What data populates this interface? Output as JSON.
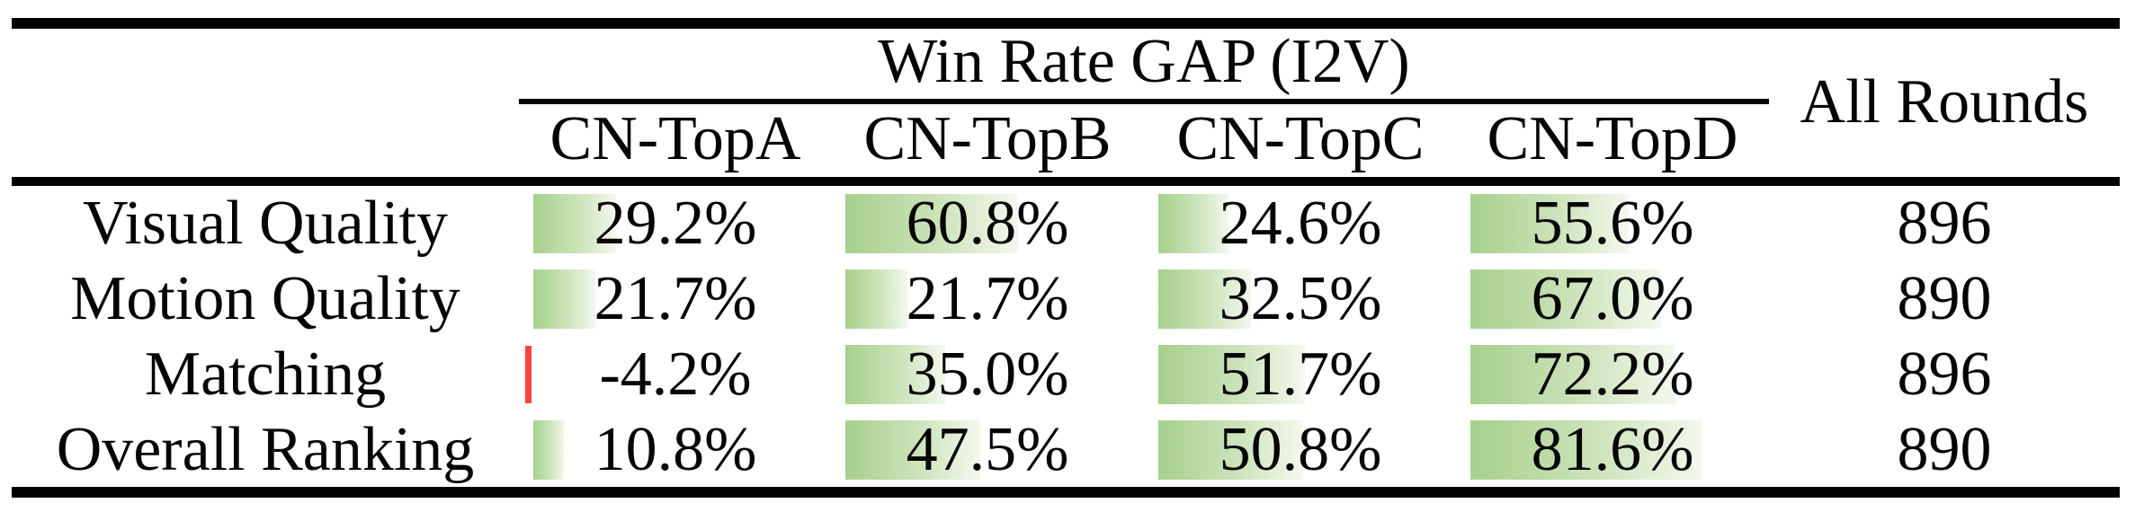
{
  "table": {
    "group_header": "Win Rate GAP (I2V)",
    "all_rounds_header": "All Rounds",
    "columns": [
      "CN-TopA",
      "CN-TopB",
      "CN-TopC",
      "CN-TopD"
    ],
    "rows": [
      {
        "label": "Visual Quality",
        "pcts": [
          29.2,
          60.8,
          24.6,
          55.6
        ],
        "pct_labels": [
          "29.2%",
          "60.8%",
          "24.6%",
          "55.6%"
        ],
        "all_rounds": "896"
      },
      {
        "label": "Motion Quality",
        "pcts": [
          21.7,
          21.7,
          32.5,
          67.0
        ],
        "pct_labels": [
          "21.7%",
          "21.7%",
          "32.5%",
          "67.0%"
        ],
        "all_rounds": "890"
      },
      {
        "label": "Matching",
        "pcts": [
          -4.2,
          35.0,
          51.7,
          72.2
        ],
        "pct_labels": [
          "-4.2%",
          "35.0%",
          "51.7%",
          "72.2%"
        ],
        "all_rounds": "896"
      },
      {
        "label": "Overall Ranking",
        "pcts": [
          10.8,
          47.5,
          50.8,
          81.6
        ],
        "pct_labels": [
          "10.8%",
          "47.5%",
          "50.8%",
          "81.6%"
        ],
        "all_rounds": "890"
      }
    ]
  },
  "colors": {
    "bar_positive_start": "#a6d08c",
    "bar_positive_end": "#f3f8ee",
    "bar_negative": "#fb4141",
    "rule": "#020202",
    "text": "#050505",
    "background": "#ffffff"
  },
  "chart_data": {
    "type": "table",
    "title": "Win Rate GAP (I2V)",
    "row_labels": [
      "Visual Quality",
      "Motion Quality",
      "Matching",
      "Overall Ranking"
    ],
    "columns": [
      "CN-TopA",
      "CN-TopB",
      "CN-TopC",
      "CN-TopD",
      "All Rounds"
    ],
    "values": [
      [
        29.2,
        60.8,
        24.6,
        55.6,
        896
      ],
      [
        21.7,
        21.7,
        32.5,
        67.0,
        890
      ],
      [
        -4.2,
        35.0,
        51.7,
        72.2,
        896
      ],
      [
        10.8,
        47.5,
        50.8,
        81.6,
        890
      ]
    ],
    "units": "percent win-rate gap for CN-Top columns; All Rounds is a count",
    "bar_scale_note": "in-cell data bars, bar length proportional to value, 100% = full cell; negative value drawn as thin red bar"
  }
}
